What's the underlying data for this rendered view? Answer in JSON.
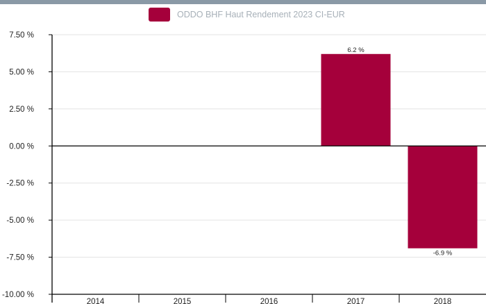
{
  "chart_data": {
    "type": "bar",
    "categories": [
      "2014",
      "2015",
      "2016",
      "2017",
      "2018"
    ],
    "series": [
      {
        "name": "ODDO BHF Haut Rendement 2023 CI-EUR",
        "values": [
          null,
          null,
          null,
          6.2,
          -6.9
        ],
        "labels": [
          "",
          "",
          "",
          "6.2 %",
          "-6.9 %"
        ],
        "color": "#a5003b"
      }
    ],
    "y_ticks": [
      7.5,
      5.0,
      2.5,
      0.0,
      -2.5,
      -5.0,
      -7.5,
      -10.0
    ],
    "y_tick_labels": [
      "7.50 %",
      "5.00 %",
      "2.50 %",
      "0.00 %",
      "-2.50 %",
      "-5.00 %",
      "-7.50 %",
      "-10.00 %"
    ],
    "ylim": [
      -10,
      7.5
    ],
    "grid": true,
    "legend_position": "top-center",
    "title": "",
    "xlabel": "",
    "ylabel": ""
  },
  "colors": {
    "top_strip": "#8a99a6",
    "grid": "#e3e3e3",
    "axis": "#000000"
  }
}
